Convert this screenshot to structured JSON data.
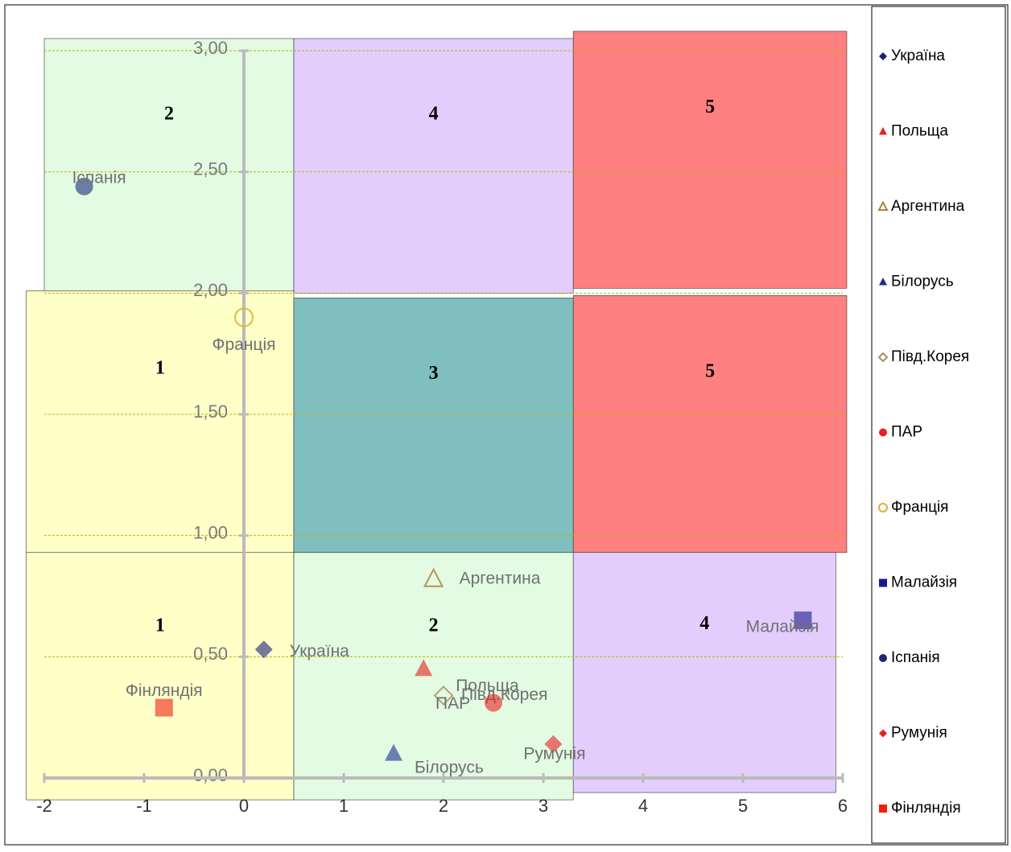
{
  "chart_data": {
    "type": "scatter",
    "xlim": [
      -2,
      6
    ],
    "ylim": [
      0,
      3
    ],
    "xticks": [
      -2,
      -1,
      0,
      1,
      2,
      3,
      4,
      5,
      6
    ],
    "yticks": [
      {
        "value": 0,
        "label": "0,00"
      },
      {
        "value": 0.5,
        "label": "0,50"
      },
      {
        "value": 1,
        "label": "1,00"
      },
      {
        "value": 1.5,
        "label": "1,50"
      },
      {
        "value": 2,
        "label": "2,00"
      },
      {
        "value": 2.5,
        "label": "2,50"
      },
      {
        "value": 3,
        "label": "3,00"
      }
    ],
    "grid": true,
    "legend": "right",
    "zones": [
      {
        "label": "2",
        "x": [
          -2,
          0.5
        ],
        "y": [
          2,
          3.05
        ],
        "color": "#e2fbe2"
      },
      {
        "label": "4",
        "x": [
          0.5,
          3.3
        ],
        "y": [
          2,
          3.05
        ],
        "color": "#e2cdfc"
      },
      {
        "label": "5",
        "x": [
          3.3,
          6.04
        ],
        "y": [
          2.02,
          3.08
        ],
        "color": "#ff8080"
      },
      {
        "label": "1",
        "x": [
          -2.18,
          0.5
        ],
        "y": [
          0.93,
          2.01
        ],
        "color": "#ffffc8"
      },
      {
        "label": "3",
        "x": [
          0.5,
          3.3
        ],
        "y": [
          0.93,
          1.98
        ],
        "color": "#80bfbf"
      },
      {
        "label": "5",
        "x": [
          3.3,
          6.04
        ],
        "y": [
          0.93,
          1.99
        ],
        "color": "#ff8080"
      },
      {
        "label": "1",
        "x": [
          -2.18,
          0.5
        ],
        "y": [
          -0.09,
          0.93
        ],
        "color": "#ffffc8"
      },
      {
        "label": "2",
        "x": [
          0.5,
          3.3
        ],
        "y": [
          -0.09,
          0.93
        ],
        "color": "#e2fbe2"
      },
      {
        "label": "4",
        "x": [
          3.3,
          5.93
        ],
        "y": [
          -0.06,
          0.93
        ],
        "color": "#e2cdfc"
      }
    ],
    "series": [
      {
        "name": "Україна",
        "color": "#1f1f7a",
        "marker": "diamond",
        "filled": true,
        "x": [
          0.2
        ],
        "values": [
          0.53
        ]
      },
      {
        "name": "Польща",
        "color": "#e82020",
        "marker": "triangle",
        "filled": true,
        "x": [
          1.8
        ],
        "values": [
          0.45
        ]
      },
      {
        "name": "Аргентина",
        "color": "#b08040",
        "marker": "triangle",
        "filled": false,
        "x": [
          1.9
        ],
        "values": [
          0.82
        ]
      },
      {
        "name": "Білорусь",
        "color": "#1f2f8a",
        "marker": "triangle",
        "filled": true,
        "x": [
          1.5
        ],
        "values": [
          0.1
        ]
      },
      {
        "name": "Півд.Корея",
        "color": "#b09060",
        "marker": "diamond",
        "filled": false,
        "x": [
          2.0
        ],
        "values": [
          0.34
        ]
      },
      {
        "name": "ПАР",
        "color": "#e82020",
        "marker": "circle",
        "filled": true,
        "x": [
          2.5
        ],
        "values": [
          0.31
        ]
      },
      {
        "name": "Франція",
        "color": "#d8b030",
        "marker": "circle",
        "filled": false,
        "x": [
          0.0
        ],
        "values": [
          1.9
        ]
      },
      {
        "name": "Малайзія",
        "color": "#1a1a8a",
        "marker": "square",
        "filled": true,
        "x": [
          5.6
        ],
        "values": [
          0.65
        ]
      },
      {
        "name": "Іспанія",
        "color": "#1a2a7a",
        "marker": "circle",
        "filled": true,
        "x": [
          -1.6
        ],
        "values": [
          2.44
        ]
      },
      {
        "name": "Румунія",
        "color": "#e82020",
        "marker": "diamond",
        "filled": true,
        "x": [
          3.1
        ],
        "values": [
          0.14
        ]
      },
      {
        "name": "Фінляндія",
        "color": "#f02010",
        "marker": "square",
        "filled": true,
        "x": [
          -0.8
        ],
        "values": [
          0.29
        ]
      }
    ]
  }
}
